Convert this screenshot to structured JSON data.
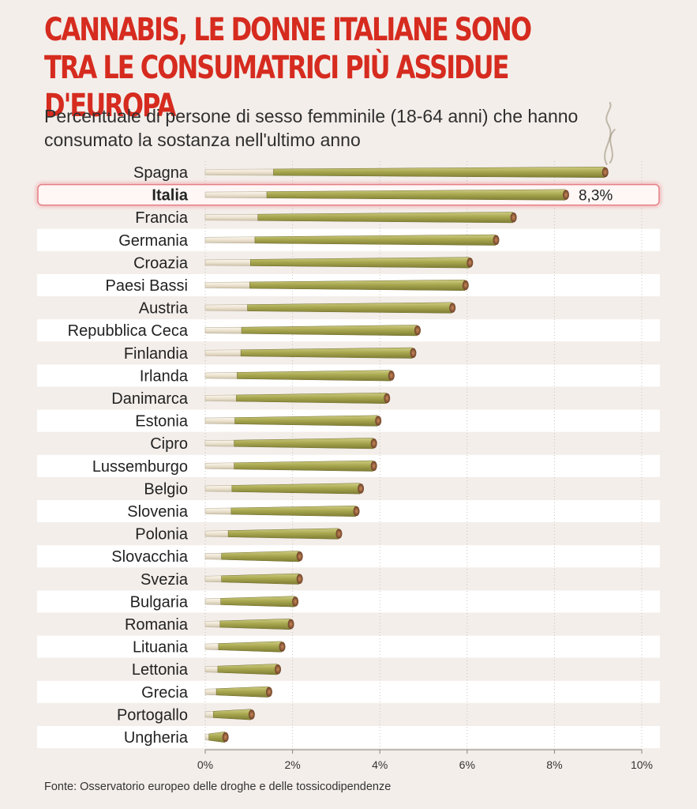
{
  "title": "CANNABIS, LE DONNE ITALIANE SONO TRA LE CONSUMATRICI PIÙ ASSIDUE D'EUROPA",
  "subtitle": "Percentuale di persone di sesso femminile (18-64 anni) che hanno consumato la sostanza nell'ultimo anno",
  "source": "Fonte: Osservatorio europeo delle droghe e delle tossicodipendenze",
  "colors": {
    "title": "#d62b1f",
    "highlight_border": "#e8868a",
    "bar_green": "#a9a850",
    "filter": "#efe7d6",
    "tip": "#8a5a3a"
  },
  "chart_data": {
    "type": "bar",
    "orientation": "horizontal",
    "highlight": "Italia",
    "categories": [
      "Spagna",
      "Italia",
      "Francia",
      "Germania",
      "Croazia",
      "Paesi Bassi",
      "Austria",
      "Repubblica Ceca",
      "Finlandia",
      "Irlanda",
      "Danimarca",
      "Estonia",
      "Cipro",
      "Lussemburgo",
      "Belgio",
      "Slovenia",
      "Polonia",
      "Slovacchia",
      "Svezia",
      "Bulgaria",
      "Romania",
      "Lituania",
      "Lettonia",
      "Grecia",
      "Portogallo",
      "Ungheria"
    ],
    "values": [
      9.2,
      8.3,
      7.1,
      6.7,
      6.1,
      6.0,
      5.7,
      4.9,
      4.8,
      4.3,
      4.2,
      4.0,
      3.9,
      3.9,
      3.6,
      3.5,
      3.1,
      2.2,
      2.2,
      2.1,
      2.0,
      1.8,
      1.7,
      1.5,
      1.1,
      0.5
    ],
    "data_labels": {
      "Italia": "8,3%"
    },
    "xlim": [
      0,
      10
    ],
    "xticks": [
      0,
      2,
      4,
      6,
      8,
      10
    ],
    "xtick_labels": [
      "0%",
      "2%",
      "4%",
      "6%",
      "8%",
      "10%"
    ],
    "grid": true,
    "xlabel": "",
    "ylabel": ""
  }
}
